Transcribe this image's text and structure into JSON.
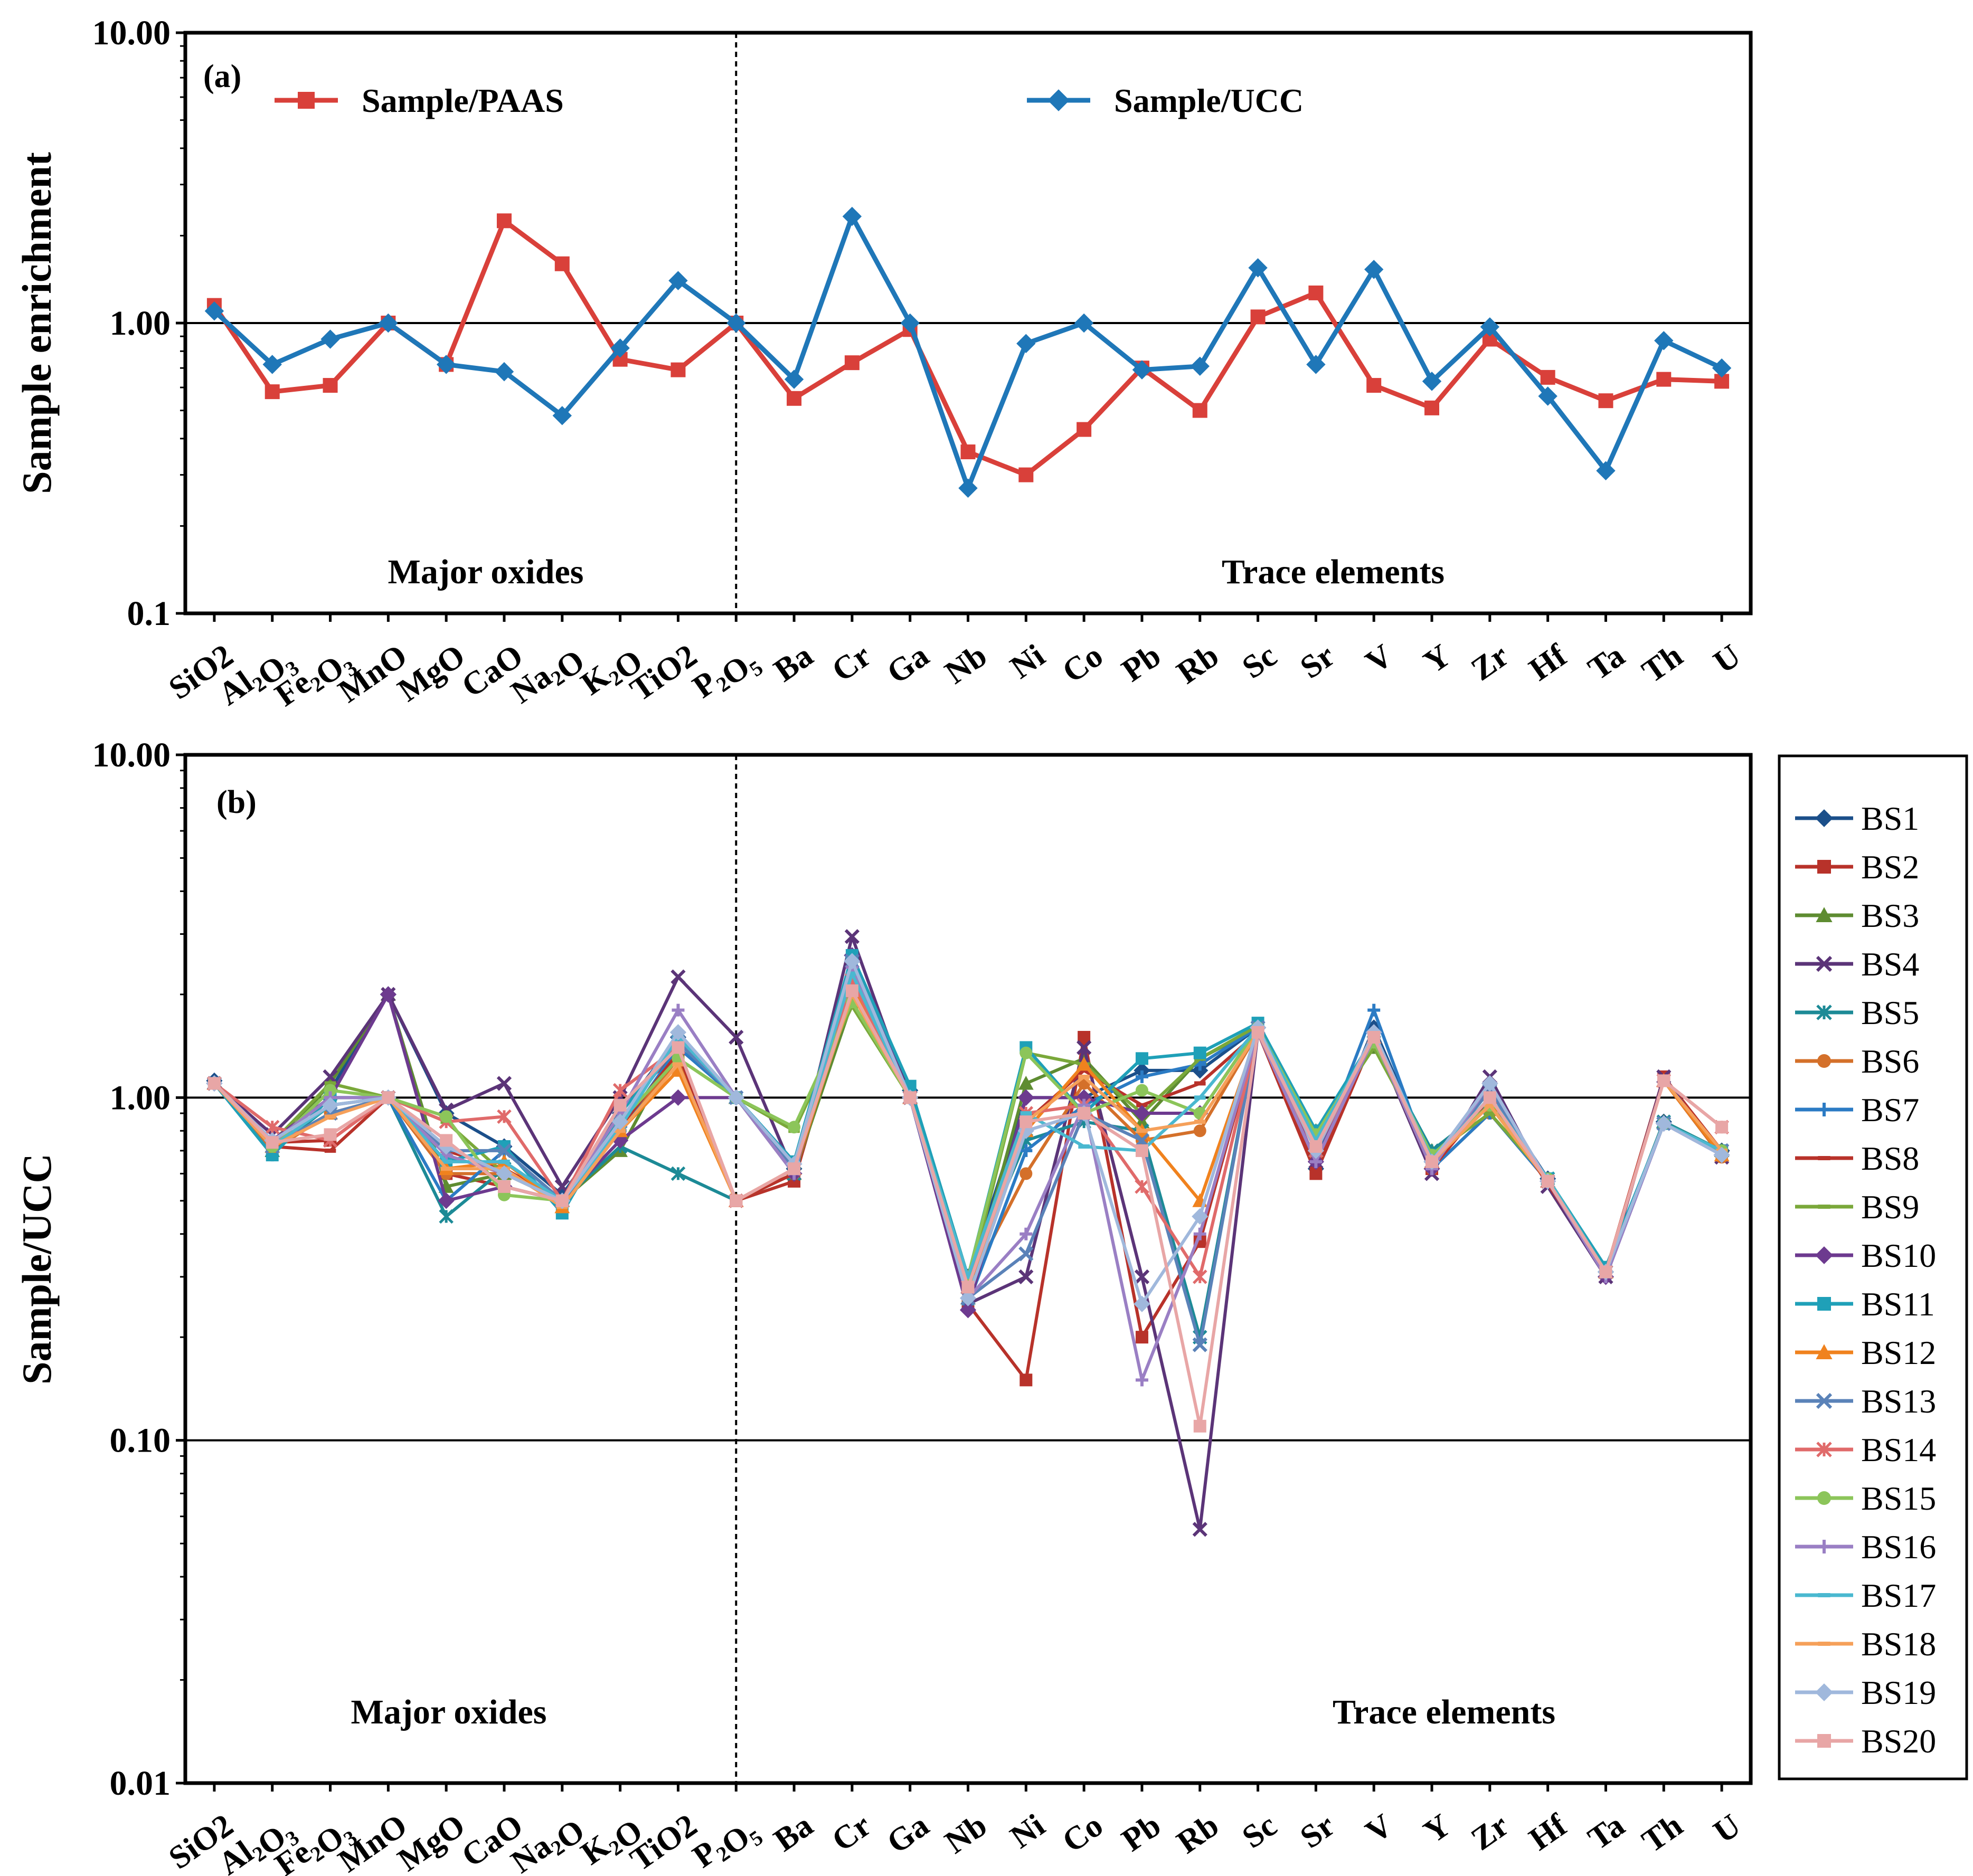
{
  "categories": [
    "SiO2",
    "Al2O3",
    "Fe2O3",
    "MnO",
    "MgO",
    "CaO",
    "Na2O",
    "K2O",
    "TiO2",
    "P2O5",
    "Ba",
    "Cr",
    "Ga",
    "Nb",
    "Ni",
    "Co",
    "Pb",
    "Rb",
    "Sc",
    "Sr",
    "V",
    "Y",
    "Zr",
    "Hf",
    "Ta",
    "Th",
    "U"
  ],
  "chart_data": [
    {
      "type": "line",
      "panel_label": "(a)",
      "ylabel": "Sample enrichment",
      "yscale": "log",
      "ylim": [
        0.1,
        10
      ],
      "yticks": [
        "0.1",
        "1.00",
        "10.00"
      ],
      "reference_line": 1.0,
      "region_labels": [
        "Major oxides",
        "Trace elements"
      ],
      "categories": [
        "SiO2",
        "Al2O3",
        "Fe2O3",
        "MnO",
        "MgO",
        "CaO",
        "Na2O",
        "K2O",
        "TiO2",
        "P2O5",
        "Ba",
        "Cr",
        "Ga",
        "Nb",
        "Ni",
        "Co",
        "Pb",
        "Rb",
        "Sc",
        "Sr",
        "V",
        "Y",
        "Zr",
        "Hf",
        "Ta",
        "Th",
        "U"
      ],
      "series": [
        {
          "name": "Sample/PAAS",
          "color": "#d9403a",
          "marker": "square",
          "values": [
            1.15,
            0.58,
            0.61,
            1.0,
            0.72,
            2.25,
            1.6,
            0.75,
            0.69,
            1.0,
            0.55,
            0.73,
            0.95,
            0.36,
            0.3,
            0.43,
            0.7,
            0.5,
            1.05,
            1.27,
            0.61,
            0.51,
            0.88,
            0.65,
            0.54,
            0.64,
            0.63
          ]
        },
        {
          "name": "Sample/UCC",
          "color": "#1f77b8",
          "marker": "diamond",
          "values": [
            1.1,
            0.72,
            0.88,
            1.0,
            0.72,
            0.68,
            0.48,
            0.82,
            1.4,
            1.0,
            0.64,
            2.33,
            1.0,
            0.27,
            0.85,
            1.0,
            0.69,
            0.71,
            1.55,
            0.72,
            1.53,
            0.63,
            0.97,
            0.56,
            0.31,
            0.87,
            0.7
          ]
        }
      ]
    },
    {
      "type": "line",
      "panel_label": "(b)",
      "ylabel": "Sample/UCC",
      "yscale": "log",
      "ylim": [
        0.01,
        10
      ],
      "yticks": [
        "0.01",
        "0.10",
        "1.00",
        "10.00"
      ],
      "reference_lines": [
        1.0,
        0.1
      ],
      "region_labels": [
        "Major oxides",
        "Trace elements"
      ],
      "categories": [
        "SiO2",
        "Al2O3",
        "Fe2O3",
        "MnO",
        "MgO",
        "CaO",
        "Na2O",
        "K2O",
        "TiO2",
        "P2O5",
        "Ba",
        "Cr",
        "Ga",
        "Nb",
        "Ni",
        "Co",
        "Pb",
        "Rb",
        "Sc",
        "Sr",
        "V",
        "Y",
        "Zr",
        "Hf",
        "Ta",
        "Th",
        "U"
      ],
      "series": [
        {
          "name": "BS1",
          "color": "#1b4f8a",
          "marker": "diamond",
          "values": [
            1.12,
            0.72,
            1.05,
            2.0,
            0.9,
            0.72,
            0.52,
            0.9,
            1.5,
            1.0,
            0.62,
            2.5,
            1.05,
            0.3,
            1.0,
            1.0,
            1.2,
            1.2,
            1.6,
            0.62,
            1.6,
            0.65,
            1.05,
            0.58,
            0.31,
            0.85,
            0.7
          ]
        },
        {
          "name": "BS2",
          "color": "#b8322a",
          "marker": "square",
          "values": [
            1.1,
            0.74,
            0.75,
            1.0,
            0.6,
            0.55,
            0.5,
            0.95,
            1.35,
            0.5,
            0.57,
            2.2,
            1.0,
            0.25,
            0.15,
            1.5,
            0.2,
            0.38,
            1.55,
            0.6,
            1.5,
            0.62,
            1.0,
            0.57,
            0.31,
            1.15,
            0.7
          ]
        },
        {
          "name": "BS3",
          "color": "#5e8c31",
          "marker": "triangle",
          "values": [
            1.1,
            0.7,
            1.1,
            2.0,
            0.55,
            0.6,
            0.5,
            0.7,
            1.45,
            1.0,
            0.6,
            1.9,
            1.0,
            0.26,
            1.1,
            1.3,
            0.85,
            1.3,
            1.6,
            0.8,
            1.4,
            0.7,
            0.95,
            0.57,
            0.31,
            0.85,
            0.7
          ]
        },
        {
          "name": "BS4",
          "color": "#5b3478",
          "marker": "x",
          "values": [
            1.1,
            0.78,
            1.15,
            2.0,
            0.92,
            1.1,
            0.55,
            1.0,
            2.25,
            1.5,
            0.6,
            2.95,
            1.0,
            0.25,
            0.3,
            1.4,
            0.3,
            0.055,
            1.55,
            0.65,
            1.5,
            0.6,
            1.15,
            0.55,
            0.3,
            1.15,
            0.67
          ]
        },
        {
          "name": "BS5",
          "color": "#1c8a96",
          "marker": "asterisk",
          "values": [
            1.1,
            0.7,
            0.95,
            1.0,
            0.45,
            0.62,
            0.5,
            0.72,
            0.6,
            0.5,
            0.6,
            2.1,
            1.0,
            0.3,
            0.75,
            0.85,
            0.8,
            0.2,
            1.6,
            0.8,
            1.45,
            0.7,
            0.95,
            0.58,
            0.31,
            0.85,
            0.7
          ]
        },
        {
          "name": "BS6",
          "color": "#d4702a",
          "marker": "circle",
          "values": [
            1.1,
            0.7,
            0.9,
            1.0,
            0.6,
            0.6,
            0.5,
            0.8,
            1.3,
            0.5,
            0.6,
            2.05,
            1.0,
            0.28,
            0.6,
            1.1,
            0.75,
            0.8,
            1.55,
            0.7,
            1.5,
            0.62,
            0.9,
            0.57,
            0.31,
            1.12,
            0.67
          ]
        },
        {
          "name": "BS7",
          "color": "#2b7bc4",
          "marker": "plus",
          "values": [
            1.1,
            0.68,
            1.0,
            1.0,
            0.5,
            0.7,
            0.5,
            0.8,
            1.4,
            1.0,
            0.62,
            2.4,
            1.0,
            0.25,
            0.7,
            0.95,
            1.15,
            1.25,
            1.6,
            0.65,
            1.8,
            0.62,
            0.9,
            0.57,
            0.3,
            0.84,
            0.68
          ]
        },
        {
          "name": "BS8",
          "color": "#b8322a",
          "marker": "dash",
          "values": [
            1.1,
            0.72,
            0.7,
            1.0,
            0.7,
            0.62,
            0.5,
            0.82,
            1.35,
            0.5,
            0.6,
            2.3,
            1.0,
            0.26,
            0.85,
            1.2,
            0.95,
            1.1,
            1.55,
            0.62,
            1.5,
            0.62,
            1.0,
            0.56,
            0.31,
            1.12,
            0.7
          ]
        },
        {
          "name": "BS9",
          "color": "#7aa83a",
          "marker": "dash",
          "values": [
            1.1,
            0.74,
            1.1,
            1.0,
            0.85,
            0.6,
            0.5,
            0.85,
            1.3,
            1.0,
            0.8,
            1.85,
            1.0,
            0.28,
            1.35,
            1.25,
            0.9,
            1.3,
            1.62,
            0.78,
            1.4,
            0.68,
            0.9,
            0.58,
            0.31,
            0.84,
            0.7
          ]
        },
        {
          "name": "BS10",
          "color": "#6d3a8f",
          "marker": "diamond",
          "values": [
            1.1,
            0.75,
            1.0,
            2.0,
            0.5,
            0.55,
            0.5,
            0.75,
            1.0,
            1.0,
            0.6,
            2.6,
            1.0,
            0.24,
            1.0,
            1.0,
            0.9,
            0.9,
            1.6,
            0.65,
            1.55,
            0.62,
            1.1,
            0.57,
            0.3,
            0.84,
            0.68
          ]
        },
        {
          "name": "BS11",
          "color": "#1fa0b8",
          "marker": "square",
          "values": [
            1.1,
            0.68,
            1.0,
            1.0,
            0.65,
            0.72,
            0.46,
            0.9,
            1.45,
            1.0,
            0.65,
            2.6,
            1.08,
            0.3,
            1.4,
            0.9,
            1.3,
            1.35,
            1.65,
            0.8,
            1.5,
            0.68,
            0.95,
            0.58,
            0.32,
            0.84,
            0.7
          ]
        },
        {
          "name": "BS12",
          "color": "#f0821e",
          "marker": "triangle",
          "values": [
            1.1,
            0.72,
            0.9,
            1.0,
            0.62,
            0.65,
            0.48,
            0.8,
            1.2,
            0.5,
            0.62,
            2.1,
            1.0,
            0.28,
            0.8,
            1.25,
            0.8,
            0.5,
            1.55,
            0.7,
            1.5,
            0.65,
            0.95,
            0.57,
            0.31,
            1.12,
            0.68
          ]
        },
        {
          "name": "BS13",
          "color": "#5a82b8",
          "marker": "x",
          "values": [
            1.1,
            0.72,
            0.9,
            1.0,
            0.7,
            0.7,
            0.5,
            0.85,
            1.45,
            1.0,
            0.62,
            2.5,
            1.0,
            0.26,
            0.35,
            0.9,
            0.75,
            0.19,
            1.6,
            0.7,
            1.5,
            0.65,
            1.05,
            0.57,
            0.31,
            0.84,
            0.7
          ]
        },
        {
          "name": "BS14",
          "color": "#e06a6a",
          "marker": "asterisk",
          "values": [
            1.1,
            0.82,
            0.75,
            1.0,
            0.85,
            0.88,
            0.5,
            1.05,
            1.4,
            0.5,
            0.62,
            2.2,
            1.0,
            0.28,
            0.9,
            0.95,
            0.55,
            0.3,
            1.55,
            0.7,
            1.5,
            0.65,
            1.0,
            0.57,
            0.31,
            1.12,
            0.82
          ]
        },
        {
          "name": "BS15",
          "color": "#8cc55a",
          "marker": "circle",
          "values": [
            1.1,
            0.72,
            1.05,
            1.0,
            0.88,
            0.52,
            0.5,
            0.85,
            1.3,
            1.0,
            0.82,
            1.9,
            1.0,
            0.3,
            1.35,
            0.9,
            1.05,
            0.9,
            1.6,
            0.78,
            1.45,
            0.68,
            0.95,
            0.58,
            0.31,
            0.84,
            0.7
          ]
        },
        {
          "name": "BS16",
          "color": "#9a7fc4",
          "marker": "plus",
          "values": [
            1.1,
            0.74,
            1.0,
            1.0,
            0.68,
            0.6,
            0.5,
            0.9,
            1.8,
            1.0,
            0.6,
            2.4,
            1.0,
            0.26,
            0.4,
            0.95,
            0.15,
            0.4,
            1.55,
            0.65,
            1.5,
            0.62,
            1.1,
            0.57,
            0.3,
            0.84,
            0.68
          ]
        },
        {
          "name": "BS17",
          "color": "#4ab8d0",
          "marker": "dash",
          "values": [
            1.1,
            0.72,
            0.95,
            1.0,
            0.65,
            0.65,
            0.5,
            0.82,
            1.5,
            1.0,
            0.64,
            2.3,
            1.0,
            0.3,
            0.9,
            0.72,
            0.7,
            1.0,
            1.6,
            0.75,
            1.5,
            0.66,
            1.0,
            0.58,
            0.31,
            0.84,
            0.7
          ]
        },
        {
          "name": "BS18",
          "color": "#f5a05a",
          "marker": "dash",
          "values": [
            1.1,
            0.72,
            0.88,
            1.0,
            0.62,
            0.62,
            0.48,
            0.8,
            1.25,
            0.5,
            0.62,
            2.0,
            1.0,
            0.28,
            0.85,
            1.15,
            0.8,
            0.85,
            1.55,
            0.72,
            1.5,
            0.65,
            0.95,
            0.57,
            0.31,
            1.12,
            0.7
          ]
        },
        {
          "name": "BS19",
          "color": "#a0b8dc",
          "marker": "diamond",
          "values": [
            1.1,
            0.75,
            0.95,
            1.0,
            0.72,
            0.6,
            0.5,
            0.85,
            1.55,
            1.0,
            0.64,
            2.5,
            1.0,
            0.26,
            0.8,
            0.9,
            0.25,
            0.45,
            1.6,
            0.7,
            1.55,
            0.65,
            1.1,
            0.57,
            0.31,
            0.84,
            0.68
          ]
        },
        {
          "name": "BS20",
          "color": "#e8a6a6",
          "marker": "square",
          "values": [
            1.1,
            0.74,
            0.78,
            1.0,
            0.75,
            0.55,
            0.5,
            0.95,
            1.4,
            0.5,
            0.62,
            2.05,
            1.0,
            0.28,
            0.85,
            0.9,
            0.7,
            0.11,
            1.55,
            0.72,
            1.5,
            0.65,
            1.0,
            0.57,
            0.31,
            1.12,
            0.82
          ]
        }
      ]
    }
  ]
}
